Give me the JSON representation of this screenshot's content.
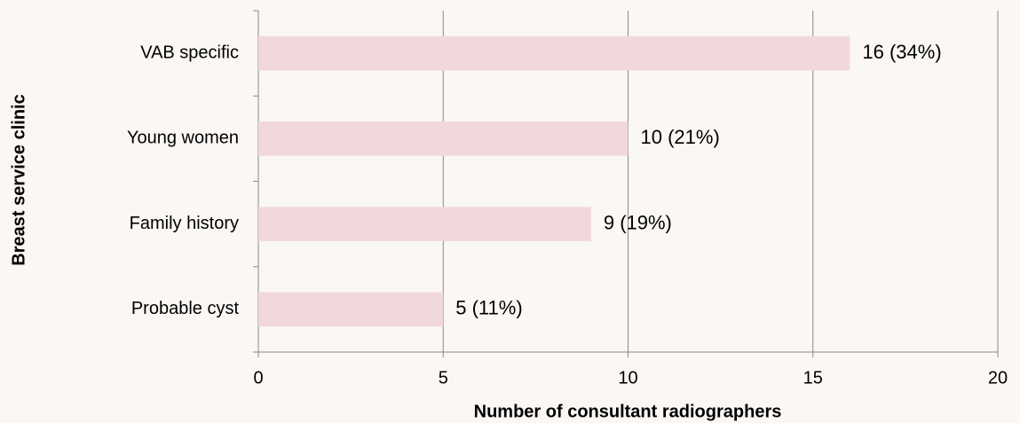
{
  "chart_data": {
    "type": "bar",
    "orientation": "horizontal",
    "xlabel": "Number of consultant radiographers",
    "ylabel": "Breast service clinic",
    "categories": [
      "VAB specific",
      "Young women",
      "Family history",
      "Probable cyst"
    ],
    "values": [
      16,
      10,
      9,
      5
    ],
    "value_labels": [
      "16 (34%)",
      "10 (21%)",
      "9 (19%)",
      "5 (11%)"
    ],
    "color": "#f0d8dc",
    "xlim": [
      0,
      20
    ],
    "xticks": [
      0,
      5,
      10,
      15,
      20
    ],
    "grid": true
  }
}
